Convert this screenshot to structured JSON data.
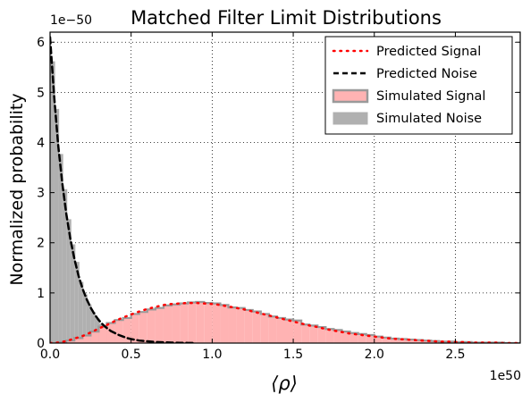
{
  "chart_data": {
    "type": "histogram-line",
    "title": "Matched Filter Limit Distributions",
    "xlabel": "⟨ρ⟩",
    "ylabel": "Normalized probability",
    "x_scale_label": "1e50",
    "y_scale_label": "1e−50",
    "xlim": [
      0,
      2.9
    ],
    "ylim": [
      0,
      6.2
    ],
    "xticks": [
      0.0,
      0.5,
      1.0,
      1.5,
      2.0,
      2.5
    ],
    "xtick_labels": [
      "0.0",
      "0.5",
      "1.0",
      "1.5",
      "2.0",
      "2.5"
    ],
    "yticks": [
      0,
      1,
      2,
      3,
      4,
      5,
      6
    ],
    "ytick_labels": [
      "0",
      "1",
      "2",
      "3",
      "4",
      "5",
      "6"
    ],
    "grid": true,
    "legend_position": "top-right",
    "colors": {
      "predicted_signal": "#ff0000",
      "predicted_noise": "#000000",
      "simulated_signal_fill": "#ffb3b3",
      "simulated_signal_edge": "#9a9a9a",
      "simulated_noise_fill": "#b0b0b0"
    },
    "series": [
      {
        "name": "Predicted Signal",
        "kind": "line",
        "style": "dotted",
        "x": [
          0.0,
          0.05,
          0.1,
          0.15,
          0.2,
          0.25,
          0.3,
          0.35,
          0.4,
          0.45,
          0.5,
          0.55,
          0.6,
          0.65,
          0.7,
          0.75,
          0.8,
          0.85,
          0.9,
          0.95,
          1.0,
          1.05,
          1.1,
          1.15,
          1.2,
          1.25,
          1.3,
          1.35,
          1.4,
          1.45,
          1.5,
          1.55,
          1.6,
          1.65,
          1.7,
          1.75,
          1.8,
          1.85,
          1.9,
          1.95,
          2.0,
          2.05,
          2.1,
          2.15,
          2.2,
          2.25,
          2.3,
          2.35,
          2.4,
          2.45,
          2.5,
          2.55,
          2.6,
          2.65,
          2.7,
          2.75,
          2.8,
          2.85,
          2.9
        ],
        "y": [
          0.0,
          0.01,
          0.04,
          0.09,
          0.14,
          0.21,
          0.29,
          0.36,
          0.44,
          0.51,
          0.57,
          0.63,
          0.68,
          0.72,
          0.76,
          0.78,
          0.79,
          0.8,
          0.8,
          0.79,
          0.78,
          0.76,
          0.73,
          0.7,
          0.67,
          0.63,
          0.59,
          0.55,
          0.51,
          0.47,
          0.43,
          0.39,
          0.35,
          0.32,
          0.28,
          0.25,
          0.22,
          0.19,
          0.17,
          0.15,
          0.13,
          0.11,
          0.09,
          0.08,
          0.07,
          0.06,
          0.05,
          0.04,
          0.03,
          0.03,
          0.02,
          0.02,
          0.01,
          0.01,
          0.01,
          0.01,
          0.0,
          0.0,
          0.0
        ]
      },
      {
        "name": "Predicted Noise",
        "kind": "line",
        "style": "dashed",
        "x": [
          0.0,
          0.025,
          0.05,
          0.075,
          0.1,
          0.125,
          0.15,
          0.175,
          0.2,
          0.225,
          0.25,
          0.275,
          0.3,
          0.325,
          0.35,
          0.375,
          0.4,
          0.425,
          0.45,
          0.475,
          0.5,
          0.55,
          0.6,
          0.65,
          0.7,
          0.75,
          0.8,
          0.85,
          0.9
        ],
        "y": [
          6.1,
          4.93,
          3.95,
          3.2,
          2.58,
          2.08,
          1.68,
          1.35,
          1.09,
          0.88,
          0.71,
          0.57,
          0.46,
          0.37,
          0.3,
          0.24,
          0.2,
          0.16,
          0.13,
          0.1,
          0.08,
          0.05,
          0.035,
          0.02,
          0.015,
          0.01,
          0.005,
          0.003,
          0.0
        ]
      },
      {
        "name": "Simulated Signal",
        "kind": "histogram",
        "bin_width": 0.05,
        "bin_starts": [
          0.0,
          0.05,
          0.1,
          0.15,
          0.2,
          0.25,
          0.3,
          0.35,
          0.4,
          0.45,
          0.5,
          0.55,
          0.6,
          0.65,
          0.7,
          0.75,
          0.8,
          0.85,
          0.9,
          0.95,
          1.0,
          1.05,
          1.1,
          1.15,
          1.2,
          1.25,
          1.3,
          1.35,
          1.4,
          1.45,
          1.5,
          1.55,
          1.6,
          1.65,
          1.7,
          1.75,
          1.8,
          1.85,
          1.9,
          1.95,
          2.0,
          2.05,
          2.1,
          2.15,
          2.2,
          2.25,
          2.3,
          2.35,
          2.4,
          2.45,
          2.5,
          2.55,
          2.6,
          2.65,
          2.7,
          2.75,
          2.8,
          2.85
        ],
        "values": [
          0.0,
          0.02,
          0.05,
          0.1,
          0.15,
          0.23,
          0.33,
          0.4,
          0.46,
          0.5,
          0.58,
          0.62,
          0.67,
          0.7,
          0.75,
          0.77,
          0.79,
          0.81,
          0.82,
          0.8,
          0.79,
          0.76,
          0.71,
          0.7,
          0.66,
          0.63,
          0.58,
          0.53,
          0.5,
          0.47,
          0.45,
          0.37,
          0.35,
          0.32,
          0.28,
          0.26,
          0.23,
          0.2,
          0.18,
          0.16,
          0.13,
          0.11,
          0.09,
          0.08,
          0.07,
          0.06,
          0.05,
          0.04,
          0.03,
          0.03,
          0.02,
          0.02,
          0.01,
          0.01,
          0.01,
          0.01,
          0.0,
          0.0
        ]
      },
      {
        "name": "Simulated Noise",
        "kind": "histogram",
        "bin_width": 0.025,
        "bin_starts": [
          0.0,
          0.025,
          0.05,
          0.075,
          0.1,
          0.125,
          0.15,
          0.175,
          0.2,
          0.225,
          0.25,
          0.275,
          0.3,
          0.325,
          0.35,
          0.375,
          0.4,
          0.425,
          0.45,
          0.475,
          0.5,
          0.525,
          0.55,
          0.575,
          0.6,
          0.625,
          0.65
        ],
        "values": [
          5.6,
          4.65,
          3.75,
          3.05,
          2.45,
          1.95,
          1.6,
          1.2,
          0.95,
          0.75,
          0.6,
          0.47,
          0.37,
          0.3,
          0.24,
          0.19,
          0.15,
          0.12,
          0.09,
          0.07,
          0.05,
          0.04,
          0.03,
          0.02,
          0.015,
          0.01,
          0.005
        ]
      }
    ]
  }
}
